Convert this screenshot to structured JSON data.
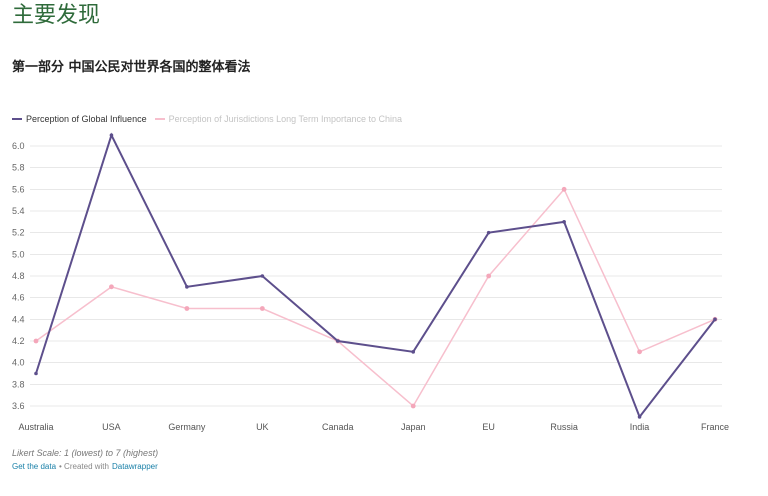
{
  "page": {
    "title": "主要发现",
    "subtitle": "第一部分 中国公民对世界各国的整体看法"
  },
  "footer": {
    "note": "Likert Scale: 1 (lowest) to 7 (highest)",
    "get_data": "Get the data",
    "created_with": "• Created with",
    "tool": "Datawrapper"
  },
  "colors": {
    "title": "#2f6b3b",
    "link": "#1a80a8"
  },
  "chart_data": {
    "type": "line",
    "categories": [
      "Australia",
      "USA",
      "Germany",
      "UK",
      "Canada",
      "Japan",
      "EU",
      "Russia",
      "India",
      "France"
    ],
    "series": [
      {
        "name": "Perception of Global Influence",
        "color": "#5d4f8c",
        "values": [
          3.9,
          6.1,
          4.7,
          4.8,
          4.2,
          4.1,
          5.2,
          5.3,
          3.5,
          4.4
        ]
      },
      {
        "name": "Perception of Jurisdictions Long Term Importance to China",
        "color": "#f7bfcd",
        "values": [
          4.2,
          4.7,
          4.5,
          4.5,
          4.2,
          3.6,
          4.8,
          5.6,
          4.1,
          4.4
        ]
      }
    ],
    "y_tick_labels": [
      "6.0",
      "5.8",
      "5.6",
      "5.4",
      "5.2",
      "5.0",
      "4.8",
      "4.6",
      "4.4",
      "4.2",
      "4.0",
      "3.8",
      "3.6"
    ],
    "ylim": [
      3.6,
      6.0
    ],
    "grid": true,
    "legend_position": "top-left"
  }
}
